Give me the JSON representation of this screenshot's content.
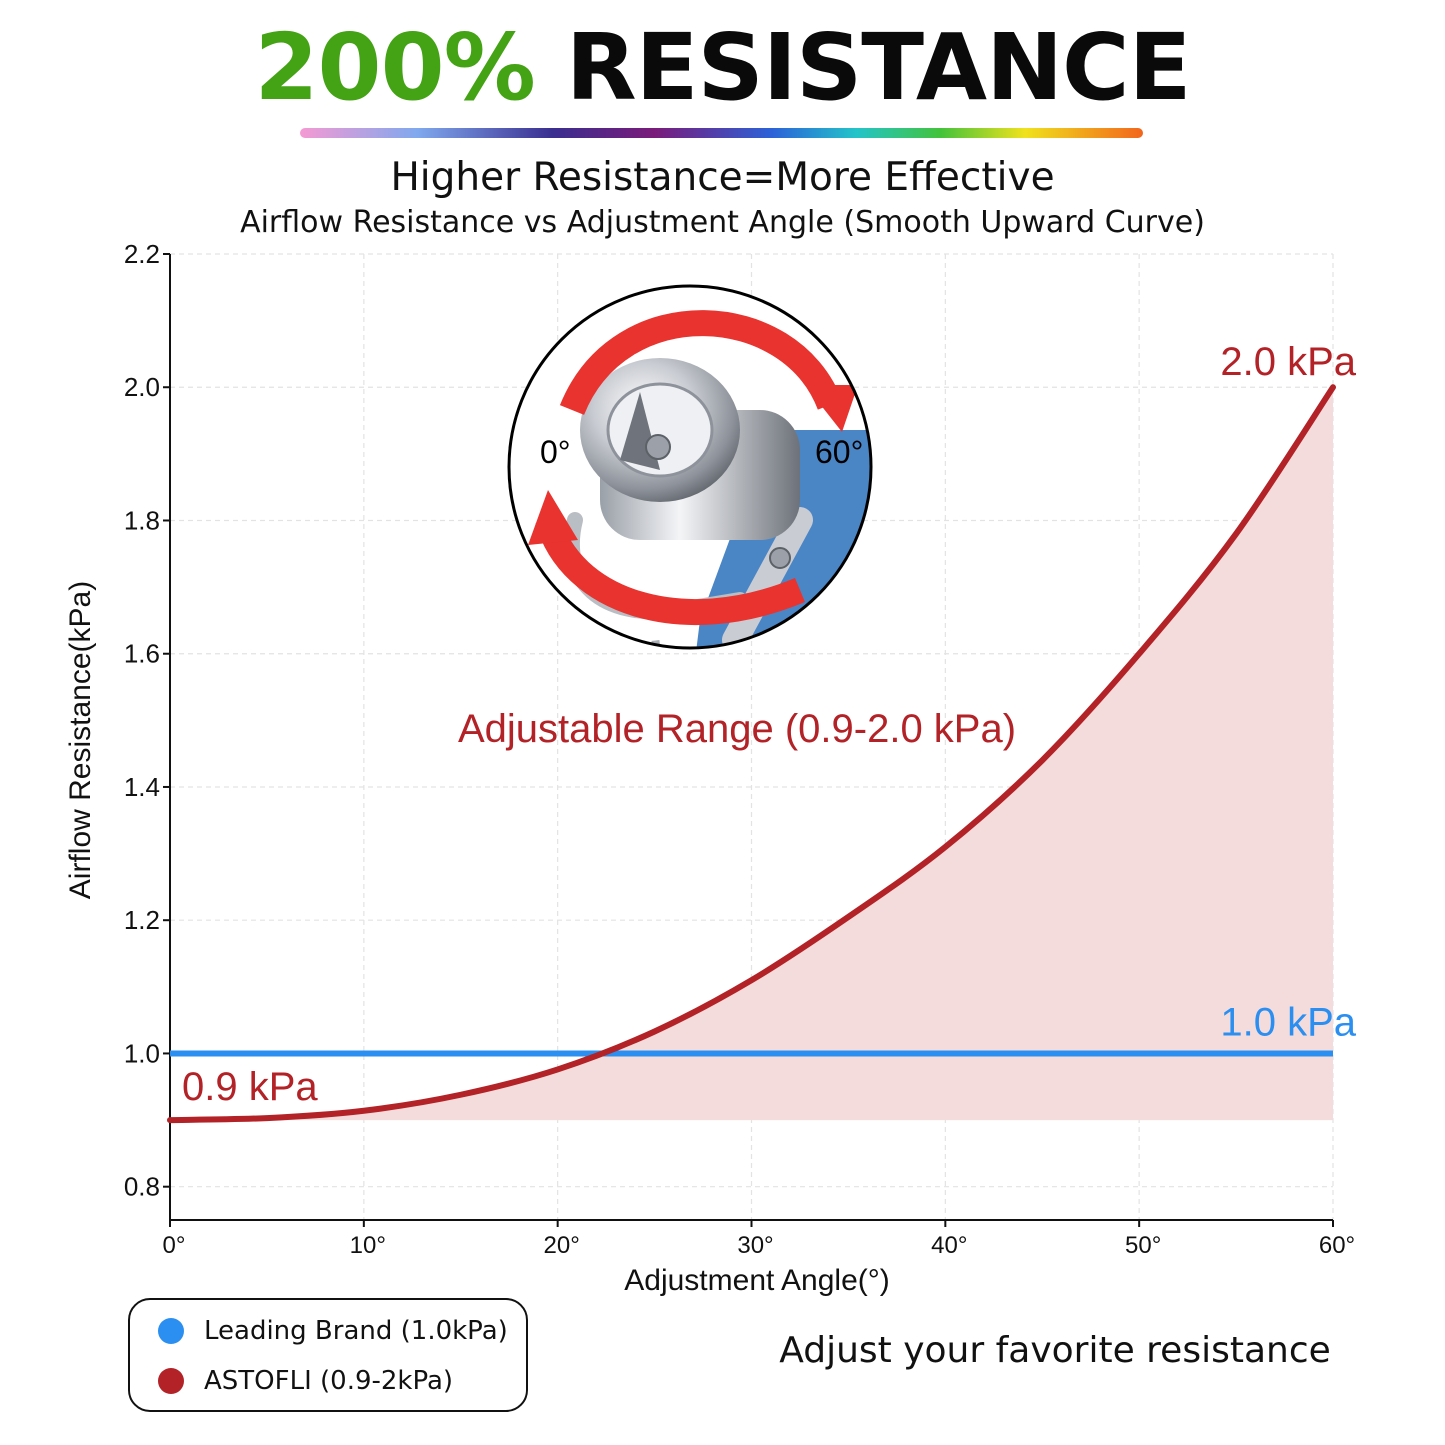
{
  "headline": {
    "accent": "200%",
    "rest": "RESISTANCE"
  },
  "subtitle": "Higher Resistance=More Effective",
  "chart_data": {
    "type": "line",
    "title": "Airflow Resistance vs Adjustment Angle (Smooth Upward Curve)",
    "xlabel": "Adjustment Angle(°)",
    "ylabel": "Airflow Resistance(kPa)",
    "xlim": [
      0,
      60
    ],
    "ylim": [
      0.75,
      2.2
    ],
    "x_ticks": [
      0,
      10,
      20,
      30,
      40,
      50,
      60
    ],
    "x_tick_labels": [
      "0°",
      "10°",
      "20°",
      "30°",
      "40°",
      "50°",
      "60°"
    ],
    "y_ticks": [
      0.8,
      1.0,
      1.2,
      1.4,
      1.6,
      1.8,
      2.0,
      2.2
    ],
    "y_tick_labels": [
      "0.8",
      "1.0",
      "1.2",
      "1.4",
      "1.6",
      "1.8",
      "2.0",
      "2.2"
    ],
    "grid": true,
    "series": [
      {
        "name": "Leading Brand (1.0kPa)",
        "color": "#2a8ff0",
        "x": [
          0,
          60
        ],
        "y": [
          1.0,
          1.0
        ],
        "end_label": "1.0 kPa"
      },
      {
        "name": "ASTOFLI (0.9-2kPa)",
        "color": "#b22226",
        "x": [
          0,
          5,
          10,
          15,
          20,
          25,
          30,
          35,
          40,
          45,
          50,
          55,
          60
        ],
        "y": [
          0.9,
          0.903,
          0.914,
          0.938,
          0.976,
          1.033,
          1.11,
          1.205,
          1.31,
          1.44,
          1.6,
          1.78,
          2.0
        ],
        "start_label": "0.9 kPa",
        "end_label": "2.0 kPa"
      }
    ],
    "shaded_region": {
      "label": "Adjustable Range (0.9-2.0 kPa)",
      "baseline": 0.9,
      "color": "#f5dcdc"
    },
    "legend_position": "bottom-left"
  },
  "inset": {
    "label_start": "0°",
    "label_end": "60°"
  },
  "legend": {
    "items": [
      {
        "label": "Leading Brand (1.0kPa)",
        "color": "#2a8ff0"
      },
      {
        "label": "ASTOFLI (0.9-2kPa)",
        "color": "#b22226"
      }
    ]
  },
  "tagline": "Adjust your favorite resistance"
}
